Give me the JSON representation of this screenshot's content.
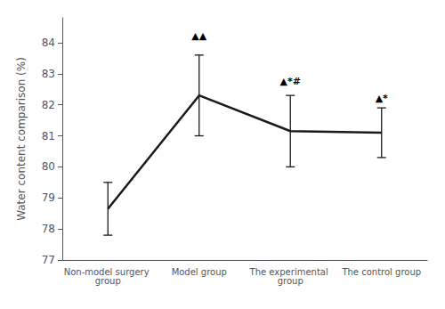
{
  "chart_data": {
    "type": "line",
    "categories": [
      "Non-model surgery group",
      "Model group",
      "The experimental group",
      "The control group"
    ],
    "values": [
      78.65,
      82.3,
      81.15,
      81.1
    ],
    "errors": [
      0.85,
      1.3,
      1.15,
      0.8
    ],
    "color": "#1a1a1a",
    "ylabel": "Water content comparison (%)",
    "ylim": [
      77,
      84.8
    ],
    "yticks": [
      77,
      78,
      79,
      80,
      81,
      82,
      83,
      84
    ],
    "grid": false,
    "annotations": [
      {
        "x": "Model group",
        "y": 84.05,
        "text": "▲▲"
      },
      {
        "x": "The experimental group",
        "y": 82.6,
        "text": "▲*#"
      },
      {
        "x": "The control group",
        "y": 82.05,
        "text": "▲*"
      }
    ]
  }
}
